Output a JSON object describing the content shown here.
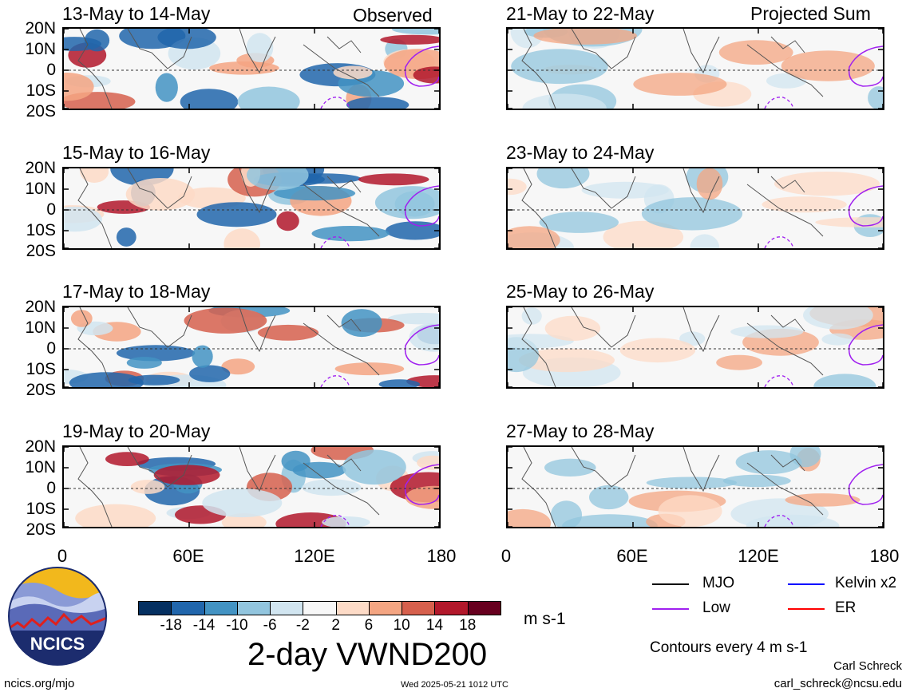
{
  "panels_left_header": "Observed",
  "panels_right_header": "Projected Sum",
  "lat_labels": [
    "20N",
    "10N",
    "0",
    "10S",
    "20S"
  ],
  "lon_labels": [
    "0",
    "60E",
    "120E",
    "180"
  ],
  "left_panels": [
    {
      "title": "13-May to 14-May"
    },
    {
      "title": "15-May to 16-May"
    },
    {
      "title": "17-May to 18-May"
    },
    {
      "title": "19-May to 20-May"
    }
  ],
  "right_panels": [
    {
      "title": "21-May to 22-May"
    },
    {
      "title": "23-May to 24-May"
    },
    {
      "title": "25-May to 26-May"
    },
    {
      "title": "27-May to 28-May"
    }
  ],
  "colorbar": {
    "labels": [
      "-18",
      "-14",
      "-10",
      "-6",
      "-2",
      "2",
      "6",
      "10",
      "14",
      "18"
    ],
    "units": "m s-1",
    "colors": [
      "#053061",
      "#2166ac",
      "#4393c3",
      "#92c5de",
      "#d1e5f0",
      "#f7f7f7",
      "#fddbc7",
      "#f4a582",
      "#d6604d",
      "#b2182b",
      "#67001f"
    ]
  },
  "legend": {
    "items": [
      {
        "label": "MJO",
        "color": "#000000"
      },
      {
        "label": "Kelvin x2",
        "color": "#0000ff"
      },
      {
        "label": "Low",
        "color": "#a020f0"
      },
      {
        "label": "ER",
        "color": "#ff0000"
      }
    ],
    "contours_note": "Contours every 4 m s-1"
  },
  "footer": {
    "logo_text": "NCICS",
    "main_title": "2-day VWND200",
    "site": "ncics.org/mjo",
    "timestamp": "Wed 2025-05-21 1012 UTC",
    "author": "Carl Schreck",
    "email": "carl_schreck@ncsu.edu"
  }
}
